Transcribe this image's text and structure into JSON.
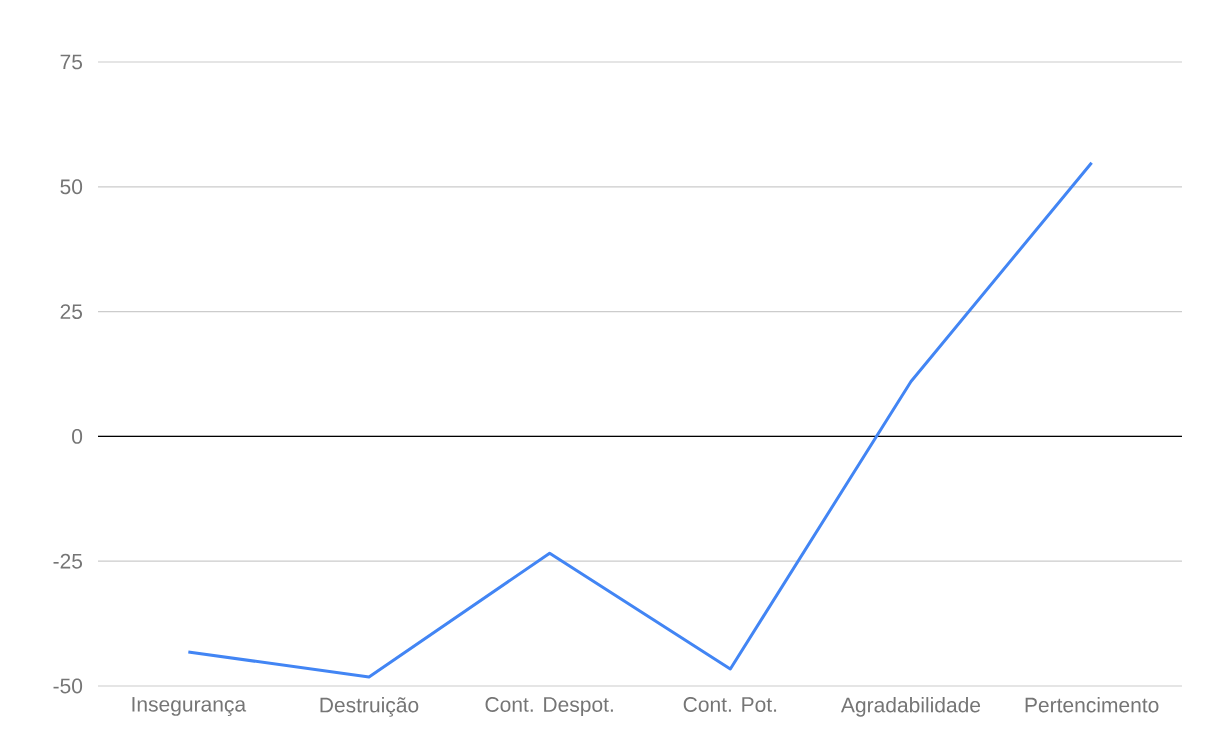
{
  "chart_data": {
    "type": "line",
    "categories": [
      "Insegurança",
      "Destruição",
      "Cont. Despot.",
      "Cont. Pot.",
      "Agradabilidade",
      "Pertencimento"
    ],
    "series": [
      {
        "color": "#4285f4",
        "values": [
          -43.2,
          -48.2,
          -23.4,
          -46.6,
          11,
          54.8
        ]
      }
    ],
    "ylim": [
      -50,
      75
    ],
    "yticks": [
      -50,
      -25,
      0,
      25,
      50,
      75
    ],
    "grid": "y",
    "marker": "none",
    "line_style": "solid"
  }
}
